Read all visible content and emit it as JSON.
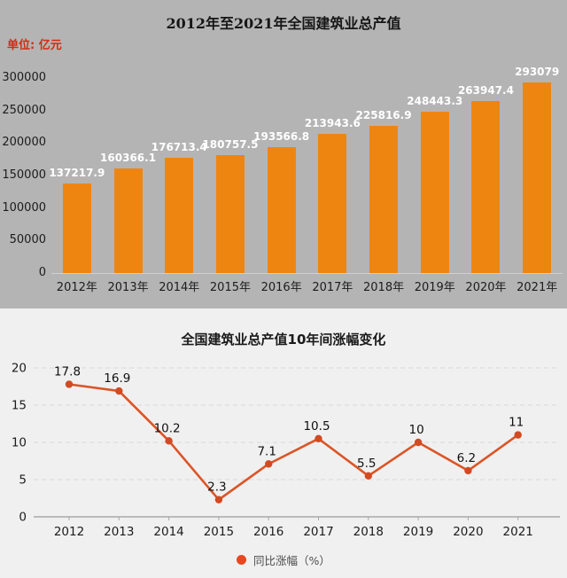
{
  "chart_data": [
    {
      "type": "bar",
      "title": "2012年至2021年全国建筑业总产值",
      "unit_label": "单位: 亿元",
      "categories": [
        "2012年",
        "2013年",
        "2014年",
        "2015年",
        "2016年",
        "2017年",
        "2018年",
        "2019年",
        "2020年",
        "2021年"
      ],
      "values": [
        137217.9,
        160366.1,
        176713.4,
        180757.5,
        193566.8,
        213943.6,
        225816.9,
        248443.3,
        263947.4,
        293079
      ],
      "value_labels": [
        "137217.9",
        "160366.1",
        "176713.4",
        "180757.5",
        "193566.8",
        "213943.6",
        "225816.9",
        "248443.3",
        "263947.4",
        "293079"
      ],
      "ylim": [
        0,
        300000
      ],
      "yticks": [
        0,
        50000,
        100000,
        150000,
        200000,
        250000,
        300000
      ],
      "xlabel": "",
      "ylabel": "",
      "grid": false,
      "legend_position": "none",
      "bar_color": "#ef8511",
      "value_label_color": "#ffffff",
      "background_color": "#b4b4b4",
      "unit_label_color": "#cf2e12"
    },
    {
      "type": "line",
      "title": "全国建筑业总产值10年间涨幅变化",
      "categories": [
        "2012",
        "2013",
        "2014",
        "2015",
        "2016",
        "2017",
        "2018",
        "2019",
        "2020",
        "2021"
      ],
      "values": [
        17.8,
        16.9,
        10.2,
        2.3,
        7.1,
        10.5,
        5.5,
        10,
        6.2,
        11
      ],
      "value_labels": [
        "17.8",
        "16.9",
        "10.2",
        "2.3",
        "7.1",
        "10.5",
        "5.5",
        "10",
        "6.2",
        "11"
      ],
      "ylim": [
        0,
        20
      ],
      "yticks": [
        0,
        5,
        10,
        15,
        20
      ],
      "xlabel": "",
      "ylabel": "",
      "grid": true,
      "grid_style": "dashed",
      "legend_label": "同比涨幅（%）",
      "legend_position": "bottom",
      "line_color": "#db5527",
      "marker_color": "#d14a22",
      "grid_color": "#d8d8d8",
      "axis_color": "#a8a8a8",
      "legend_marker_color": "#e8481f",
      "background_color": "#f0f0f0"
    }
  ]
}
